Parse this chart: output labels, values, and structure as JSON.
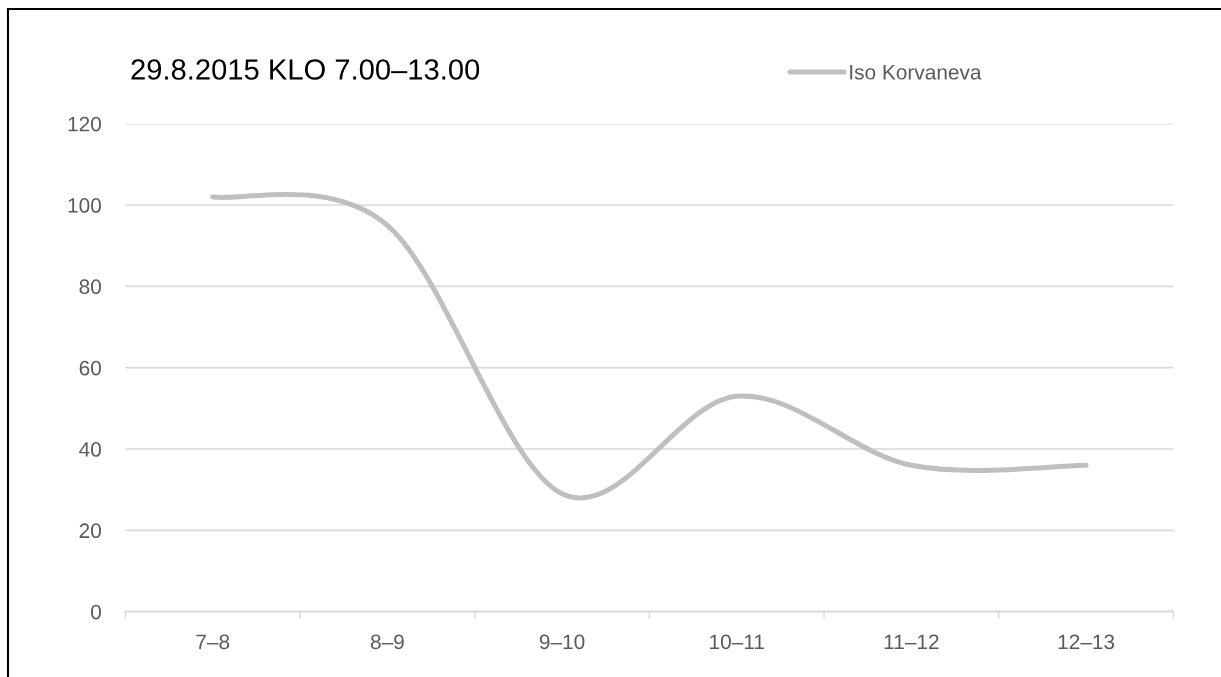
{
  "chart_data": {
    "type": "line",
    "title": "29.8.2015 KLO 7.00–13.00",
    "categories": [
      "7–8",
      "8–9",
      "9–10",
      "10–11",
      "11–12",
      "12–13"
    ],
    "series": [
      {
        "name": "Iso Korvaneva",
        "color": "#bfbfbf",
        "values": [
          102,
          95,
          29,
          53,
          36,
          36
        ]
      }
    ],
    "ylim": [
      0,
      120
    ],
    "yticks": [
      0,
      20,
      40,
      60,
      80,
      100,
      120
    ],
    "grid": "y",
    "legend": "top right",
    "marker": "none",
    "line_style": "solid"
  }
}
